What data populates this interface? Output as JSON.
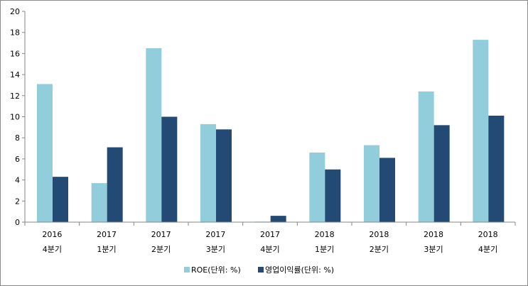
{
  "chart_data": {
    "type": "bar",
    "categories": [
      [
        "2016",
        "4분기"
      ],
      [
        "2017",
        "1분기"
      ],
      [
        "2017",
        "2분기"
      ],
      [
        "2017",
        "3분기"
      ],
      [
        "2017",
        "4분기"
      ],
      [
        "2018",
        "1분기"
      ],
      [
        "2018",
        "2분기"
      ],
      [
        "2018",
        "3분기"
      ],
      [
        "2018",
        "4분기"
      ]
    ],
    "series": [
      {
        "name": "ROE(단위: %)",
        "color": "#92CDDC",
        "values": [
          13.1,
          3.7,
          16.5,
          9.3,
          0.05,
          6.6,
          7.3,
          12.4,
          17.3
        ]
      },
      {
        "name": "영업이익률(단위: %)",
        "color": "#234A74",
        "values": [
          4.3,
          7.1,
          10.0,
          8.8,
          0.6,
          5.0,
          6.1,
          9.2,
          10.1
        ]
      }
    ],
    "ylim": [
      0,
      20
    ],
    "yticks": [
      0,
      2,
      4,
      6,
      8,
      10,
      12,
      14,
      16,
      18,
      20
    ],
    "title": "",
    "xlabel": "",
    "ylabel": "",
    "grid": false,
    "legend": "bottom"
  }
}
